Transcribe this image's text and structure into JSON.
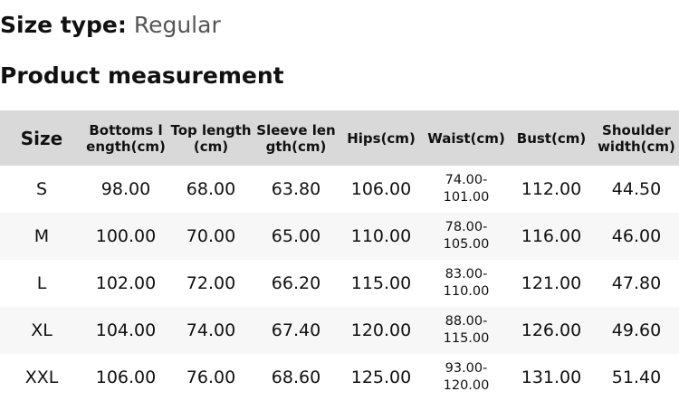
{
  "size_type": {
    "label": "Size type:",
    "value": "Regular"
  },
  "title": "Product measurement",
  "table": {
    "headers": [
      "Size",
      "Bottoms length(cm)",
      "Top length(cm)",
      "Sleeve length(cm)",
      "Hips(cm)",
      "Waist(cm)",
      "Bust(cm)",
      "Shoulder width(cm)"
    ],
    "rows": [
      [
        "S",
        "98.00",
        "68.00",
        "63.80",
        "106.00",
        "74.00-101.00",
        "112.00",
        "44.50"
      ],
      [
        "M",
        "100.00",
        "70.00",
        "65.00",
        "110.00",
        "78.00-105.00",
        "116.00",
        "46.00"
      ],
      [
        "L",
        "102.00",
        "72.00",
        "66.20",
        "115.00",
        "83.00-110.00",
        "121.00",
        "47.80"
      ],
      [
        "XL",
        "104.00",
        "74.00",
        "67.40",
        "120.00",
        "88.00-115.00",
        "126.00",
        "49.60"
      ],
      [
        "XXL",
        "106.00",
        "76.00",
        "68.60",
        "125.00",
        "93.00-120.00",
        "131.00",
        "51.40"
      ]
    ]
  },
  "colors": {
    "header_bg": "#d9d9d9",
    "alt_row_bg": "#f7f7f7"
  }
}
